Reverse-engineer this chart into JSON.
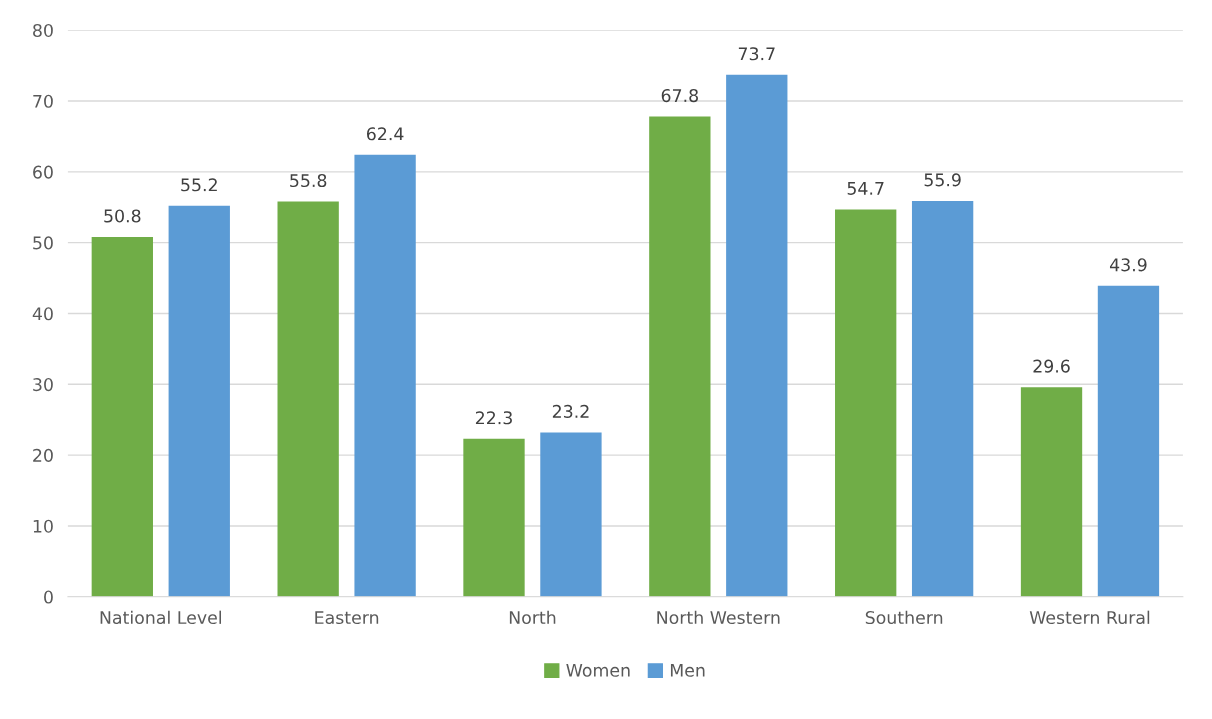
{
  "chart_data": {
    "type": "bar",
    "categories": [
      "National Level",
      "Eastern",
      "North",
      "North Western",
      "Southern",
      "Western Rural"
    ],
    "series": [
      {
        "name": "Women",
        "color": "#70ad47",
        "values": [
          50.8,
          55.8,
          22.3,
          67.8,
          54.7,
          29.6
        ]
      },
      {
        "name": "Men",
        "color": "#5b9bd5",
        "values": [
          55.2,
          62.4,
          23.2,
          73.7,
          55.9,
          43.9
        ]
      }
    ],
    "ylim": [
      0,
      80
    ],
    "yticks": [
      0,
      10,
      20,
      30,
      40,
      50,
      60,
      70,
      80
    ],
    "grid": "y",
    "legend": "bottom",
    "data_labels": true
  }
}
